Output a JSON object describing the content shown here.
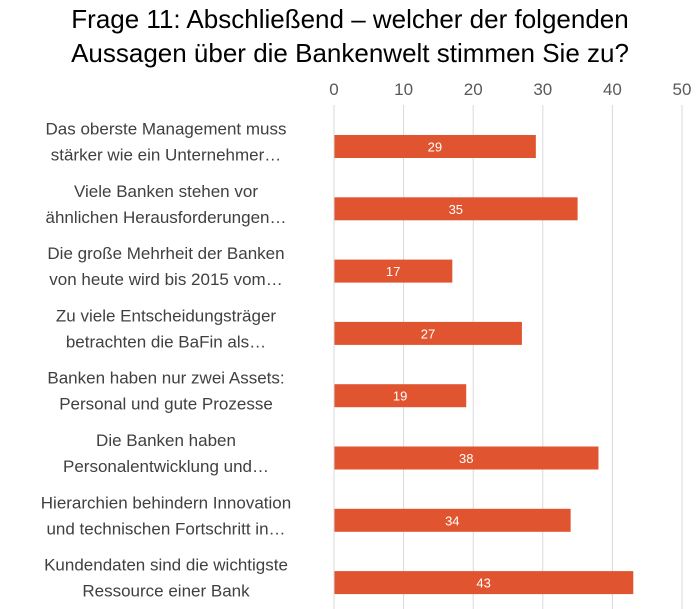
{
  "chart_data": {
    "type": "bar",
    "orientation": "horizontal",
    "title_lines": [
      "Frage 11: Abschließend – welcher der folgenden",
      "Aussagen über die Bankenwelt stimmen Sie zu?"
    ],
    "categories": [
      [
        "Das oberste Management muss",
        "stärker wie ein Unternehmer…"
      ],
      [
        "Viele Banken stehen vor",
        "ähnlichen Herausforderungen…"
      ],
      [
        "Die große Mehrheit der Banken",
        "von heute wird bis 2015 vom…"
      ],
      [
        "Zu viele Entscheidungsträger",
        "betrachten die BaFin als…"
      ],
      [
        "Banken haben nur zwei Assets:",
        "Personal und gute Prozesse"
      ],
      [
        "Die Banken haben",
        "Personalentwicklung und…"
      ],
      [
        "Hierarchien behindern Innovation",
        "und technischen Fortschritt in…"
      ],
      [
        "Kundendaten sind die wichtigste",
        "Ressource einer Bank"
      ]
    ],
    "values": [
      29,
      35,
      17,
      27,
      19,
      38,
      34,
      43
    ],
    "xlim": [
      0,
      50
    ],
    "xticks": [
      0,
      10,
      20,
      30,
      40,
      50
    ],
    "axis_position": "top",
    "grid": true,
    "bar_color": "#e0552f",
    "grid_color": "#d9d9d9",
    "data_label_color": "#ffffff"
  }
}
